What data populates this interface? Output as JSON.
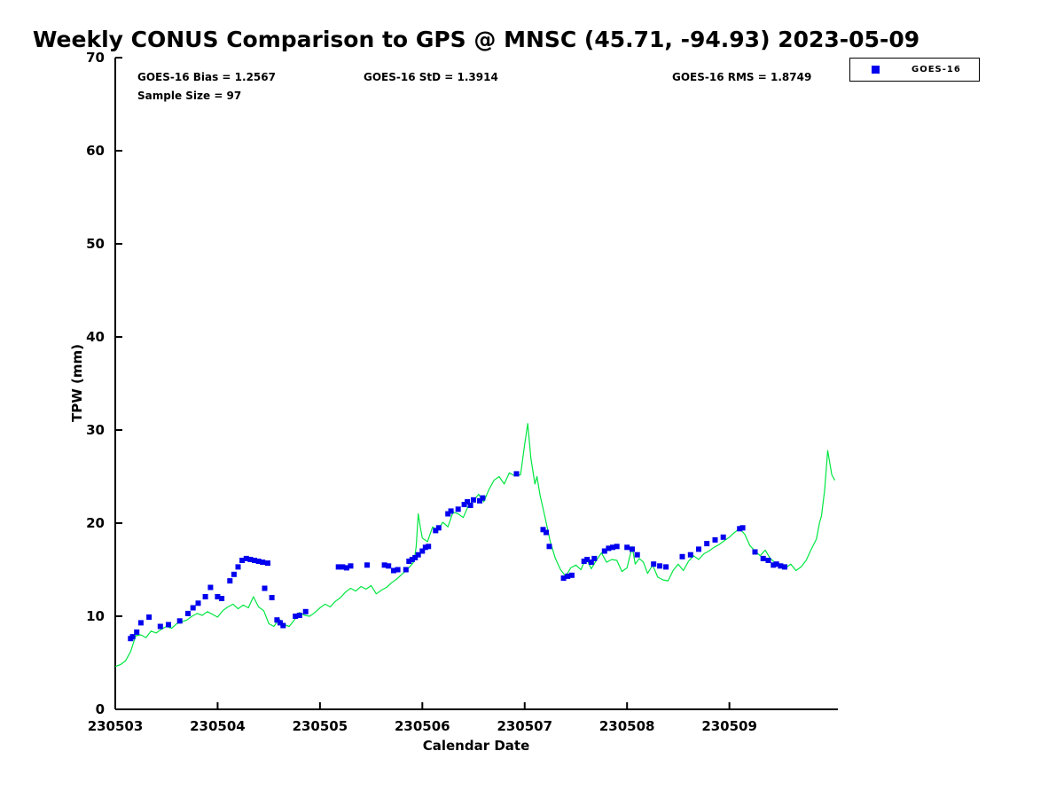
{
  "figure": {
    "annotations": {
      "bias": "GOES-16 Bias = 1.2567",
      "std": "GOES-16 StD = 1.3914",
      "rms": "GOES-16 RMS = 1.8749",
      "sample_size": "Sample Size = 97"
    },
    "legend": {
      "entries": [
        {
          "label": "GOES-16",
          "marker": "square",
          "color": "#0000EE"
        }
      ]
    },
    "colors": {
      "gps_line": "#00E640",
      "goes16_marker": "#0000EE",
      "axis": "#000000",
      "background": "#FFFFFF"
    }
  },
  "chart_data": {
    "type": "line",
    "title": "Weekly CONUS Comparison to GPS @ MNSC (45.71, -94.93) 2023-05-09",
    "xlabel": "Calendar Date",
    "ylabel": "TPW (mm)",
    "x_unit": "days since 230503 00:00",
    "xlim": [
      0,
      7.06
    ],
    "ylim": [
      0,
      70
    ],
    "grid": false,
    "legend_position": "outside-top-right",
    "x_ticks": [
      {
        "value": 0,
        "label": "230503"
      },
      {
        "value": 1,
        "label": "230504"
      },
      {
        "value": 2,
        "label": "230505"
      },
      {
        "value": 3,
        "label": "230506"
      },
      {
        "value": 4,
        "label": "230507"
      },
      {
        "value": 5,
        "label": "230508"
      },
      {
        "value": 6,
        "label": "230509"
      }
    ],
    "y_ticks": [
      0,
      10,
      20,
      30,
      40,
      50,
      60,
      70
    ],
    "stats": {
      "bias": 1.2567,
      "std": 1.3914,
      "rms": 1.8749,
      "sample_size": 97
    },
    "series": [
      {
        "name": "GPS",
        "type": "line",
        "color": "#00E640",
        "points": [
          [
            0.0,
            4.6
          ],
          [
            0.05,
            4.8
          ],
          [
            0.1,
            5.2
          ],
          [
            0.15,
            6.2
          ],
          [
            0.2,
            7.9
          ],
          [
            0.25,
            8.0
          ],
          [
            0.3,
            7.7
          ],
          [
            0.35,
            8.4
          ],
          [
            0.4,
            8.2
          ],
          [
            0.45,
            8.6
          ],
          [
            0.5,
            8.9
          ],
          [
            0.55,
            8.7
          ],
          [
            0.6,
            9.2
          ],
          [
            0.65,
            9.4
          ],
          [
            0.7,
            9.6
          ],
          [
            0.75,
            10.0
          ],
          [
            0.8,
            10.3
          ],
          [
            0.85,
            10.1
          ],
          [
            0.9,
            10.5
          ],
          [
            0.95,
            10.2
          ],
          [
            1.0,
            9.9
          ],
          [
            1.05,
            10.6
          ],
          [
            1.1,
            11.0
          ],
          [
            1.15,
            11.3
          ],
          [
            1.2,
            10.8
          ],
          [
            1.25,
            11.2
          ],
          [
            1.3,
            10.9
          ],
          [
            1.35,
            12.1
          ],
          [
            1.4,
            11.0
          ],
          [
            1.45,
            10.6
          ],
          [
            1.5,
            9.2
          ],
          [
            1.55,
            8.9
          ],
          [
            1.6,
            9.7
          ],
          [
            1.65,
            9.1
          ],
          [
            1.7,
            8.9
          ],
          [
            1.75,
            9.6
          ],
          [
            1.8,
            10.4
          ],
          [
            1.85,
            10.1
          ],
          [
            1.9,
            10.0
          ],
          [
            1.95,
            10.4
          ],
          [
            2.0,
            10.9
          ],
          [
            2.05,
            11.3
          ],
          [
            2.1,
            11.0
          ],
          [
            2.15,
            11.6
          ],
          [
            2.2,
            12.0
          ],
          [
            2.25,
            12.6
          ],
          [
            2.3,
            13.0
          ],
          [
            2.35,
            12.7
          ],
          [
            2.4,
            13.2
          ],
          [
            2.45,
            12.9
          ],
          [
            2.5,
            13.3
          ],
          [
            2.55,
            12.4
          ],
          [
            2.6,
            12.8
          ],
          [
            2.65,
            13.1
          ],
          [
            2.7,
            13.6
          ],
          [
            2.75,
            14.0
          ],
          [
            2.8,
            14.5
          ],
          [
            2.85,
            15.0
          ],
          [
            2.9,
            15.6
          ],
          [
            2.92,
            15.9
          ],
          [
            2.94,
            17.5
          ],
          [
            2.96,
            21.0
          ],
          [
            2.98,
            19.6
          ],
          [
            3.0,
            18.4
          ],
          [
            3.05,
            18.0
          ],
          [
            3.1,
            19.6
          ],
          [
            3.15,
            19.2
          ],
          [
            3.2,
            20.1
          ],
          [
            3.25,
            19.6
          ],
          [
            3.3,
            21.2
          ],
          [
            3.35,
            21.0
          ],
          [
            3.4,
            20.6
          ],
          [
            3.45,
            21.9
          ],
          [
            3.5,
            22.4
          ],
          [
            3.55,
            23.1
          ],
          [
            3.6,
            22.3
          ],
          [
            3.65,
            23.6
          ],
          [
            3.7,
            24.6
          ],
          [
            3.75,
            25.0
          ],
          [
            3.8,
            24.2
          ],
          [
            3.85,
            25.4
          ],
          [
            3.9,
            25.1
          ],
          [
            3.96,
            25.2
          ],
          [
            4.0,
            28.5
          ],
          [
            4.03,
            30.7
          ],
          [
            4.06,
            27.0
          ],
          [
            4.1,
            24.2
          ],
          [
            4.12,
            25.0
          ],
          [
            4.15,
            23.0
          ],
          [
            4.2,
            20.6
          ],
          [
            4.25,
            18.0
          ],
          [
            4.3,
            16.2
          ],
          [
            4.35,
            15.0
          ],
          [
            4.4,
            14.3
          ],
          [
            4.45,
            15.2
          ],
          [
            4.5,
            15.5
          ],
          [
            4.55,
            15.0
          ],
          [
            4.6,
            16.3
          ],
          [
            4.65,
            15.1
          ],
          [
            4.7,
            16.0
          ],
          [
            4.75,
            16.8
          ],
          [
            4.8,
            15.8
          ],
          [
            4.85,
            16.1
          ],
          [
            4.9,
            16.0
          ],
          [
            4.95,
            14.8
          ],
          [
            5.0,
            15.2
          ],
          [
            5.05,
            17.5
          ],
          [
            5.08,
            15.6
          ],
          [
            5.12,
            16.2
          ],
          [
            5.16,
            15.8
          ],
          [
            5.2,
            14.6
          ],
          [
            5.25,
            15.5
          ],
          [
            5.3,
            14.2
          ],
          [
            5.35,
            13.9
          ],
          [
            5.4,
            13.8
          ],
          [
            5.45,
            14.9
          ],
          [
            5.5,
            15.6
          ],
          [
            5.55,
            14.9
          ],
          [
            5.6,
            15.9
          ],
          [
            5.65,
            16.5
          ],
          [
            5.7,
            16.1
          ],
          [
            5.75,
            16.7
          ],
          [
            5.8,
            17.0
          ],
          [
            5.85,
            17.4
          ],
          [
            5.9,
            17.7
          ],
          [
            5.95,
            18.1
          ],
          [
            6.0,
            18.5
          ],
          [
            6.05,
            19.0
          ],
          [
            6.1,
            19.4
          ],
          [
            6.15,
            18.8
          ],
          [
            6.2,
            17.6
          ],
          [
            6.25,
            17.0
          ],
          [
            6.3,
            16.5
          ],
          [
            6.35,
            17.1
          ],
          [
            6.4,
            16.2
          ],
          [
            6.45,
            15.7
          ],
          [
            6.5,
            15.4
          ],
          [
            6.55,
            15.2
          ],
          [
            6.6,
            15.6
          ],
          [
            6.65,
            14.9
          ],
          [
            6.7,
            15.3
          ],
          [
            6.75,
            16.0
          ],
          [
            6.8,
            17.2
          ],
          [
            6.85,
            18.3
          ],
          [
            6.88,
            20.0
          ],
          [
            6.9,
            20.8
          ],
          [
            6.93,
            23.5
          ],
          [
            6.96,
            27.8
          ],
          [
            6.98,
            26.5
          ],
          [
            7.0,
            25.2
          ],
          [
            7.03,
            24.6
          ]
        ]
      },
      {
        "name": "GOES-16",
        "type": "scatter",
        "marker": "square",
        "color": "#0000EE",
        "points": [
          [
            0.15,
            7.6
          ],
          [
            0.17,
            7.8
          ],
          [
            0.21,
            8.3
          ],
          [
            0.25,
            9.3
          ],
          [
            0.33,
            9.9
          ],
          [
            0.44,
            8.9
          ],
          [
            0.52,
            9.1
          ],
          [
            0.63,
            9.5
          ],
          [
            0.71,
            10.3
          ],
          [
            0.76,
            10.9
          ],
          [
            0.81,
            11.4
          ],
          [
            0.88,
            12.1
          ],
          [
            0.93,
            13.1
          ],
          [
            1.0,
            12.1
          ],
          [
            1.04,
            11.9
          ],
          [
            1.12,
            13.8
          ],
          [
            1.16,
            14.5
          ],
          [
            1.2,
            15.3
          ],
          [
            1.24,
            16.0
          ],
          [
            1.28,
            16.2
          ],
          [
            1.32,
            16.1
          ],
          [
            1.36,
            16.0
          ],
          [
            1.4,
            15.9
          ],
          [
            1.44,
            15.8
          ],
          [
            1.46,
            13.0
          ],
          [
            1.49,
            15.7
          ],
          [
            1.53,
            12.0
          ],
          [
            1.58,
            9.6
          ],
          [
            1.61,
            9.3
          ],
          [
            1.64,
            9.0
          ],
          [
            1.76,
            10.0
          ],
          [
            1.8,
            10.1
          ],
          [
            1.86,
            10.5
          ],
          [
            2.18,
            15.3
          ],
          [
            2.22,
            15.3
          ],
          [
            2.26,
            15.2
          ],
          [
            2.3,
            15.4
          ],
          [
            2.46,
            15.5
          ],
          [
            2.63,
            15.5
          ],
          [
            2.67,
            15.4
          ],
          [
            2.72,
            14.9
          ],
          [
            2.76,
            15.0
          ],
          [
            2.84,
            15.0
          ],
          [
            2.87,
            15.9
          ],
          [
            2.9,
            16.1
          ],
          [
            2.93,
            16.3
          ],
          [
            2.96,
            16.6
          ],
          [
            3.0,
            17.0
          ],
          [
            3.03,
            17.4
          ],
          [
            3.06,
            17.5
          ],
          [
            3.13,
            19.2
          ],
          [
            3.16,
            19.5
          ],
          [
            3.25,
            21.0
          ],
          [
            3.28,
            21.3
          ],
          [
            3.35,
            21.5
          ],
          [
            3.41,
            22.0
          ],
          [
            3.44,
            22.3
          ],
          [
            3.47,
            21.9
          ],
          [
            3.5,
            22.5
          ],
          [
            3.56,
            22.4
          ],
          [
            3.59,
            22.7
          ],
          [
            3.92,
            25.3
          ],
          [
            4.18,
            19.3
          ],
          [
            4.21,
            19.0
          ],
          [
            4.24,
            17.5
          ],
          [
            4.38,
            14.1
          ],
          [
            4.42,
            14.3
          ],
          [
            4.46,
            14.4
          ],
          [
            4.58,
            15.9
          ],
          [
            4.61,
            16.1
          ],
          [
            4.65,
            15.8
          ],
          [
            4.68,
            16.2
          ],
          [
            4.78,
            17.0
          ],
          [
            4.82,
            17.3
          ],
          [
            4.86,
            17.4
          ],
          [
            4.9,
            17.5
          ],
          [
            5.0,
            17.4
          ],
          [
            5.05,
            17.2
          ],
          [
            5.1,
            16.6
          ],
          [
            5.26,
            15.6
          ],
          [
            5.32,
            15.4
          ],
          [
            5.38,
            15.3
          ],
          [
            5.54,
            16.4
          ],
          [
            5.62,
            16.6
          ],
          [
            5.7,
            17.2
          ],
          [
            5.78,
            17.8
          ],
          [
            5.86,
            18.2
          ],
          [
            5.94,
            18.5
          ],
          [
            6.1,
            19.4
          ],
          [
            6.13,
            19.5
          ],
          [
            6.25,
            16.9
          ],
          [
            6.33,
            16.2
          ],
          [
            6.38,
            16.0
          ],
          [
            6.43,
            15.5
          ],
          [
            6.46,
            15.6
          ],
          [
            6.5,
            15.4
          ],
          [
            6.54,
            15.3
          ]
        ]
      }
    ]
  }
}
